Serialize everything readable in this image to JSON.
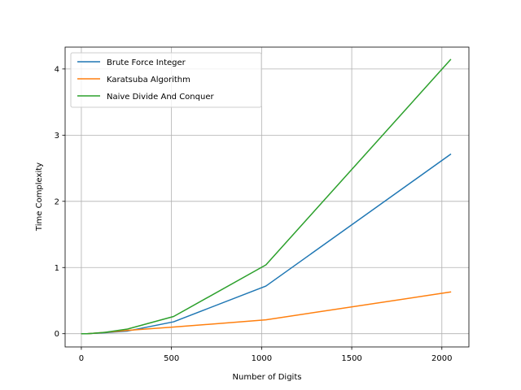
{
  "chart_data": {
    "type": "line",
    "title": "",
    "xlabel": "Number of Digits",
    "ylabel": "Time Complexity",
    "xlim": [
      -90,
      2150
    ],
    "ylim": [
      -0.2,
      4.33
    ],
    "xticks": [
      0,
      500,
      1000,
      1500,
      2000
    ],
    "yticks": [
      0,
      1,
      2,
      3,
      4
    ],
    "grid": true,
    "legend_position": "top-left",
    "series": [
      {
        "name": "Brute Force Integer",
        "color": "#1f77b4",
        "x": [
          2,
          4,
          8,
          16,
          32,
          64,
          128,
          256,
          512,
          1024,
          2048
        ],
        "y": [
          0.0,
          0.0,
          0.0,
          0.0,
          0.0,
          0.005,
          0.015,
          0.04,
          0.18,
          0.72,
          2.71
        ]
      },
      {
        "name": "Karatsuba Algorithm",
        "color": "#ff7f0e",
        "x": [
          2,
          4,
          8,
          16,
          32,
          64,
          128,
          256,
          512,
          1024,
          2048
        ],
        "y": [
          0.0,
          0.0,
          0.0,
          0.0,
          0.0,
          0.005,
          0.02,
          0.05,
          0.1,
          0.21,
          0.63
        ]
      },
      {
        "name": "Naive Divide And Conquer",
        "color": "#2ca02c",
        "x": [
          2,
          4,
          8,
          16,
          32,
          64,
          128,
          256,
          512,
          1024,
          2048
        ],
        "y": [
          0.0,
          0.0,
          0.0,
          0.0,
          0.0,
          0.005,
          0.02,
          0.07,
          0.26,
          1.04,
          4.14
        ]
      }
    ]
  }
}
